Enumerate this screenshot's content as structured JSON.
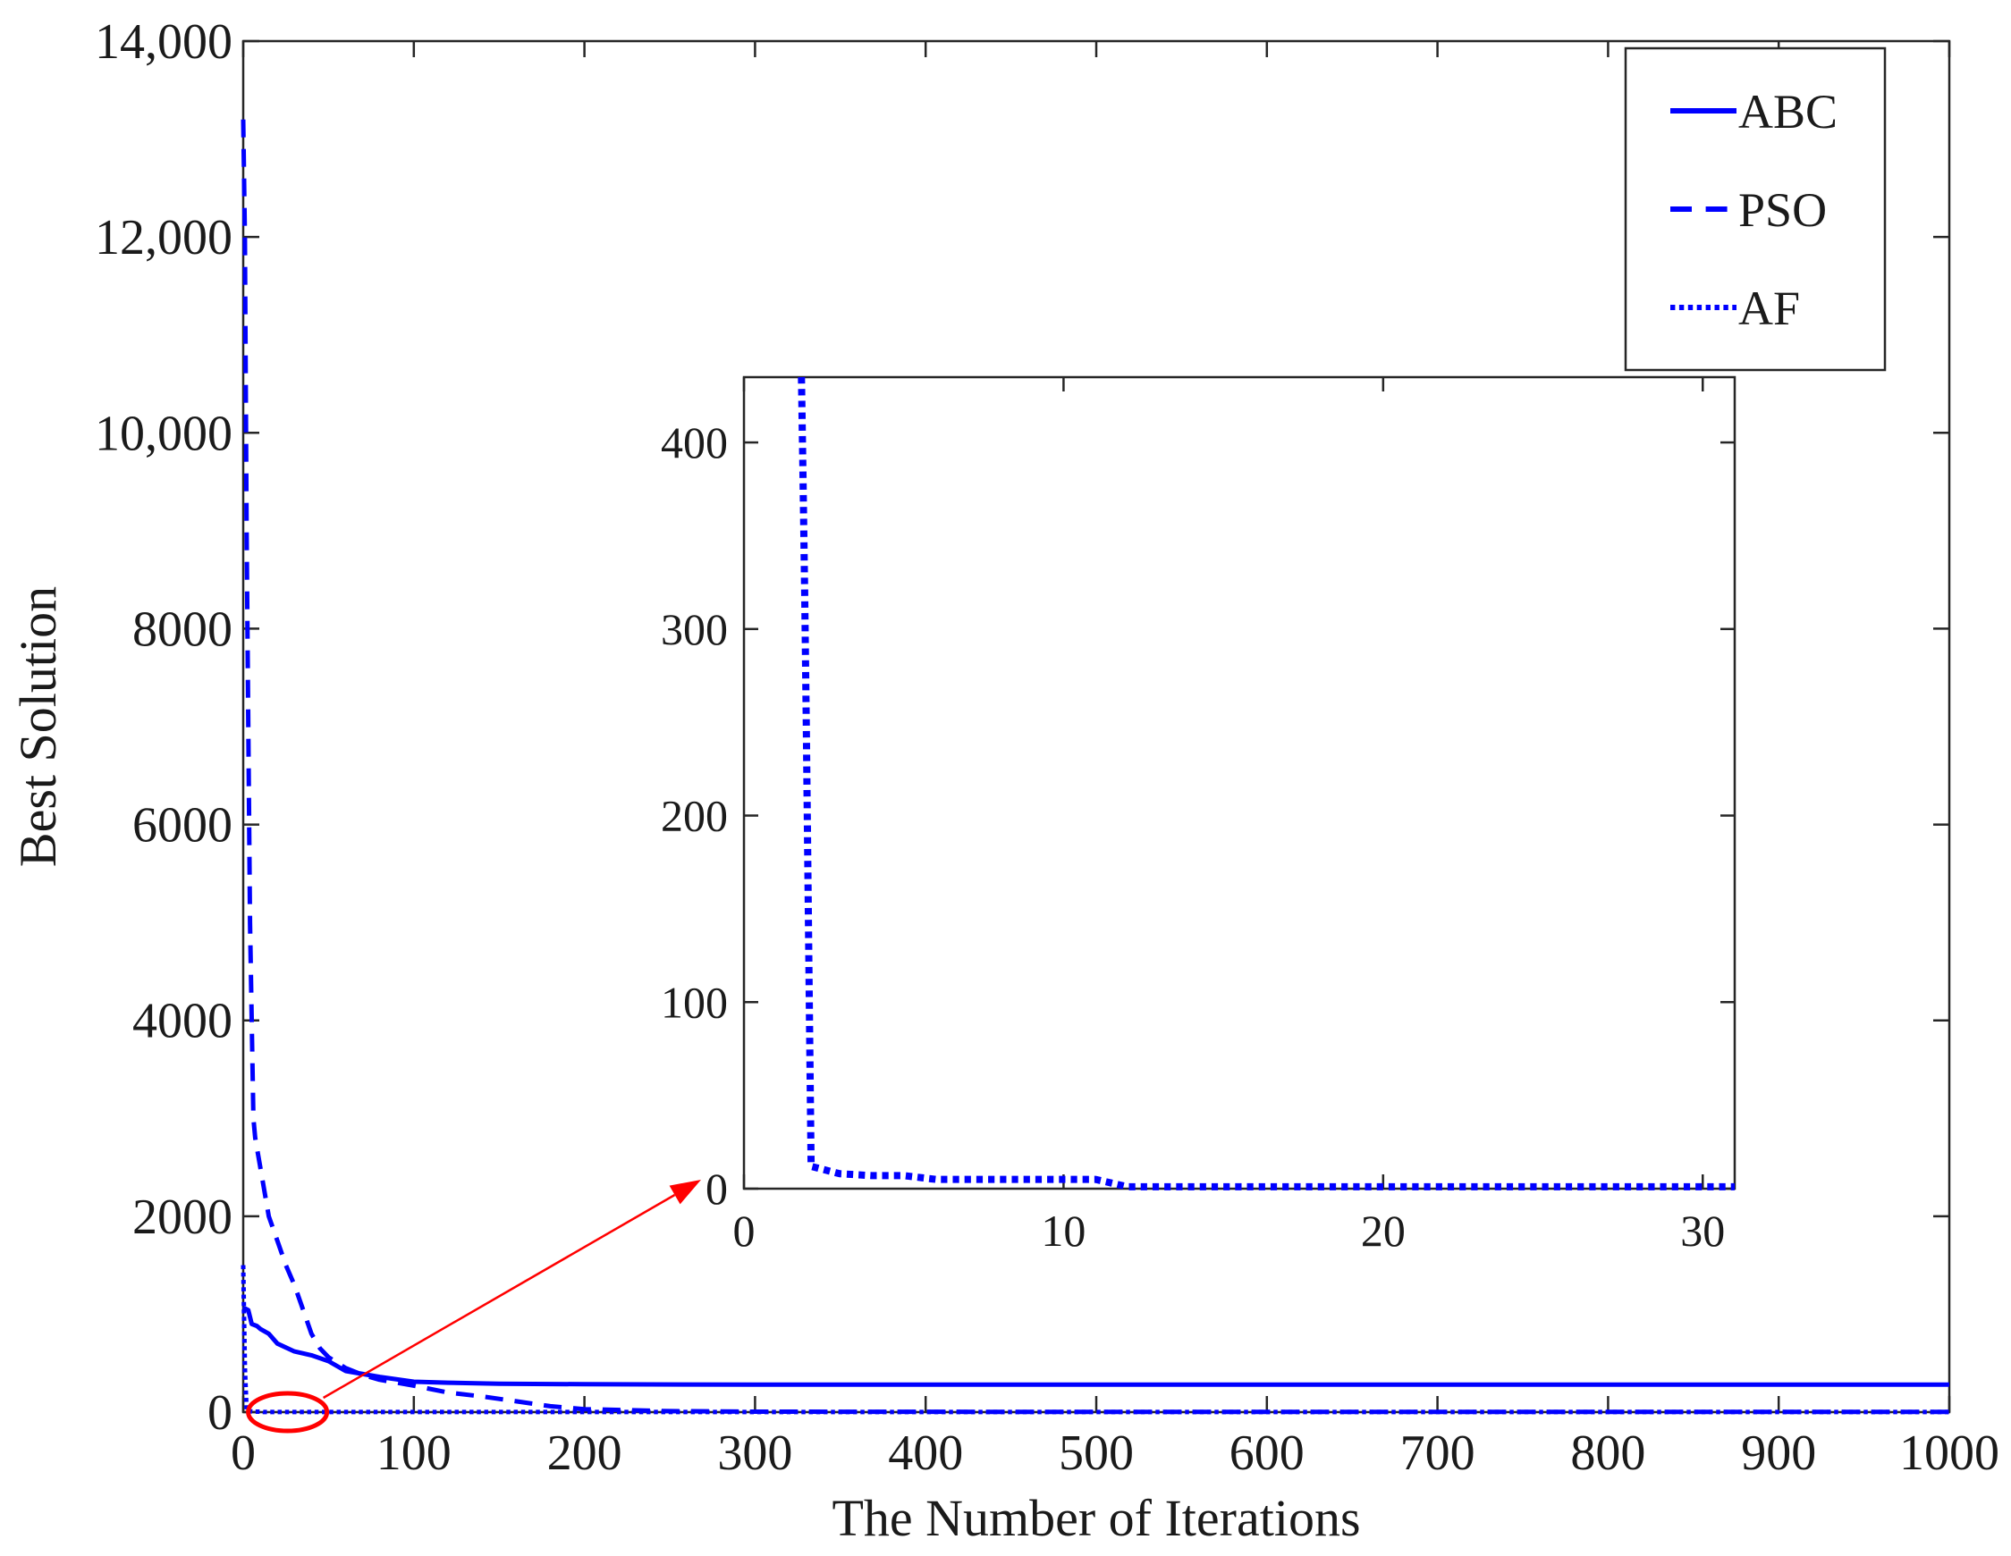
{
  "chart_data": [
    {
      "type": "line",
      "panel": "main",
      "title": "",
      "xlabel": "The Number of Iterations",
      "ylabel": "Best Solution",
      "xlim": [
        0,
        1000
      ],
      "ylim": [
        0,
        14000
      ],
      "xticks": [
        0,
        100,
        200,
        300,
        400,
        500,
        600,
        700,
        800,
        900,
        1000
      ],
      "xtick_labels": [
        "0",
        "100",
        "200",
        "300",
        "400",
        "500",
        "600",
        "700",
        "800",
        "900",
        "1000"
      ],
      "yticks": [
        0,
        2000,
        4000,
        6000,
        8000,
        10000,
        12000,
        14000
      ],
      "ytick_labels": [
        "0",
        "2000",
        "4000",
        "6000",
        "8000",
        "10,000",
        "12,000",
        "14,000"
      ],
      "grid": false,
      "legend_position": "top-right",
      "color": "#0000ff",
      "series": [
        {
          "name": "ABC",
          "style": "solid",
          "x": [
            0,
            1,
            3,
            5,
            8,
            10,
            15,
            20,
            30,
            40,
            50,
            60,
            80,
            100,
            120,
            150,
            200,
            300,
            500,
            700,
            1000
          ],
          "y": [
            1050,
            1060,
            1040,
            900,
            880,
            850,
            800,
            700,
            620,
            580,
            520,
            420,
            360,
            310,
            300,
            290,
            285,
            280,
            280,
            280,
            280
          ]
        },
        {
          "name": "PSO",
          "style": "dashed",
          "x": [
            0,
            1,
            2,
            3,
            4,
            5,
            6,
            7,
            8,
            10,
            12,
            15,
            20,
            25,
            30,
            35,
            40,
            45,
            50,
            60,
            70,
            80,
            100,
            120,
            140,
            160,
            180,
            200,
            250,
            300,
            500,
            1000
          ],
          "y": [
            13200,
            12000,
            9000,
            7000,
            5000,
            4000,
            3000,
            2800,
            2700,
            2500,
            2300,
            2000,
            1750,
            1500,
            1300,
            1050,
            800,
            650,
            560,
            450,
            380,
            330,
            270,
            200,
            160,
            110,
            60,
            30,
            10,
            5,
            2,
            2
          ]
        },
        {
          "name": "AF",
          "style": "dotted",
          "x": [
            0,
            1,
            2,
            3,
            5,
            6,
            11,
            12,
            31,
            50,
            100,
            1000
          ],
          "y": [
            1500,
            450,
            12,
            8,
            7,
            5,
            5,
            1,
            1,
            1,
            1,
            1
          ]
        }
      ]
    },
    {
      "type": "line",
      "panel": "inset",
      "title": "",
      "xlabel": "",
      "ylabel": "",
      "xlim": [
        0,
        31
      ],
      "ylim": [
        0,
        435
      ],
      "xticks": [
        0,
        10,
        20,
        30
      ],
      "xtick_labels": [
        "0",
        "10",
        "20",
        "30"
      ],
      "yticks": [
        0,
        100,
        200,
        300,
        400
      ],
      "ytick_labels": [
        "0",
        "100",
        "200",
        "300",
        "400"
      ],
      "grid": false,
      "color": "#0000ff",
      "series": [
        {
          "name": "AF",
          "style": "dotted",
          "x": [
            1.8,
            1.85,
            1.9,
            1.95,
            2.0,
            2.05,
            2.1,
            3,
            4,
            5,
            6,
            8,
            10,
            11,
            11.5,
            12,
            20,
            31
          ],
          "y": [
            435,
            380,
            320,
            250,
            170,
            90,
            12,
            8,
            7,
            7,
            5,
            5,
            5,
            5,
            3,
            1,
            1,
            1
          ]
        }
      ]
    }
  ],
  "annotation": {
    "highlight_color": "#ff0000",
    "zoom_center": [
      26,
      0
    ]
  }
}
